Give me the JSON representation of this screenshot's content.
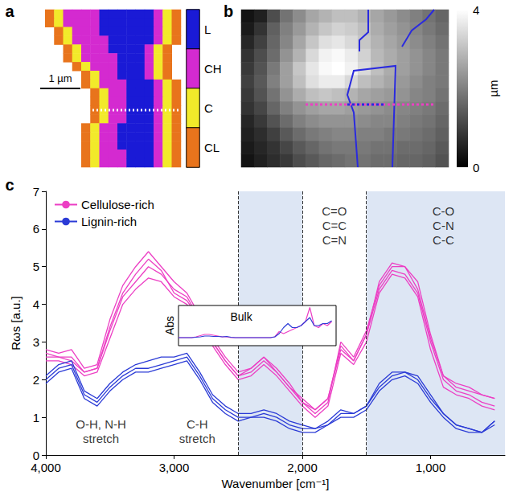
{
  "chart_data": [
    {
      "type": "heatmap",
      "panel_label": "a",
      "tick_labels": false,
      "classes": [
        {
          "name": "L",
          "color": "#1a1ad6"
        },
        {
          "name": "CH",
          "color": "#d42ad0"
        },
        {
          "name": "C",
          "color": "#f2ea2a"
        },
        {
          "name": "CL",
          "color": "#e8741c"
        }
      ],
      "annotations": [
        {
          "text": "1 µm"
        }
      ],
      "cells": [
        [
          null,
          "CL",
          "C",
          "CH",
          "CH",
          "CH",
          "CH",
          "L",
          "L",
          "L",
          "L",
          "L",
          "L",
          "CH",
          "C",
          "CL"
        ],
        [
          null,
          "CL",
          "C",
          "CH",
          "CH",
          "CH",
          "CH",
          "L",
          "L",
          "L",
          "L",
          "L",
          "L",
          "CH",
          "C",
          "CL"
        ],
        [
          null,
          null,
          "CL",
          "C",
          "CH",
          "CH",
          "CH",
          "L",
          "L",
          "L",
          "L",
          "L",
          "L",
          "CH",
          "C",
          "CL"
        ],
        [
          null,
          null,
          "CL",
          "C",
          "CH",
          "CH",
          "CH",
          "CH",
          "L",
          "L",
          "L",
          "L",
          "L",
          "CH",
          "C",
          "CL"
        ],
        [
          null,
          null,
          null,
          "CL",
          "C",
          "CH",
          "CH",
          "CH",
          "L",
          "L",
          "L",
          "L",
          "CH",
          "C",
          "CL",
          null
        ],
        [
          null,
          null,
          null,
          "CL",
          "C",
          "CH",
          "CH",
          "CH",
          "CH",
          "L",
          "L",
          "L",
          "CH",
          "C",
          "CL",
          null
        ],
        [
          null,
          null,
          null,
          null,
          "CL",
          "C",
          "CH",
          "CH",
          "CH",
          "L",
          "L",
          "L",
          "CH",
          "C",
          "CL",
          null
        ],
        [
          null,
          null,
          null,
          null,
          null,
          "CL",
          "C",
          "CH",
          "CH",
          "L",
          "L",
          "L",
          "CH",
          "C",
          "CL",
          null
        ],
        [
          null,
          null,
          null,
          null,
          null,
          "CL",
          "C",
          "CH",
          "CH",
          "CH",
          "L",
          "L",
          "L",
          "CH",
          "C",
          "CL"
        ],
        [
          null,
          null,
          null,
          null,
          null,
          null,
          "CL",
          "C",
          "CH",
          "CH",
          "L",
          "L",
          "L",
          "CH",
          "C",
          "CL"
        ],
        [
          null,
          null,
          null,
          null,
          null,
          null,
          "CL",
          "C",
          "CH",
          "CH",
          "L",
          "L",
          "L",
          "CH",
          "C",
          "CL"
        ],
        [
          null,
          null,
          null,
          null,
          null,
          null,
          "CL",
          "C",
          "CH",
          "CH",
          "L",
          "L",
          "L",
          "CH",
          "C",
          "CL"
        ],
        [
          null,
          null,
          null,
          null,
          null,
          null,
          "CL",
          "C",
          "CH",
          "CH",
          "L",
          "L",
          "L",
          "CH",
          "C",
          "CL"
        ],
        [
          null,
          null,
          null,
          null,
          null,
          "CL",
          "C",
          "CH",
          "CH",
          "L",
          "L",
          "L",
          "L",
          "CH",
          "C",
          "CL"
        ],
        [
          null,
          null,
          null,
          null,
          null,
          "CL",
          "C",
          "CH",
          "CH",
          "L",
          "L",
          "L",
          "L",
          "CH",
          "C",
          "CL"
        ],
        [
          null,
          null,
          null,
          null,
          null,
          "CL",
          "C",
          "CH",
          "CH",
          "L",
          "L",
          "L",
          "L",
          "CH",
          "C",
          "CL"
        ],
        [
          null,
          null,
          null,
          null,
          null,
          "CL",
          "C",
          "CH",
          "CH",
          "CH",
          "L",
          "L",
          "L",
          "CH",
          "C",
          "CL"
        ],
        [
          null,
          null,
          null,
          null,
          null,
          "CL",
          "C",
          "CH",
          "CH",
          "CH",
          "L",
          "L",
          "L",
          "CH",
          "C",
          "CL"
        ]
      ]
    },
    {
      "type": "heatmap",
      "panel_label": "b",
      "tick_labels": false,
      "colorbar": {
        "range": [
          0,
          4
        ],
        "ticks": [
          0,
          4
        ],
        "label": "µm",
        "colors": [
          "#000000",
          "#ffffff"
        ]
      },
      "cells": [
        [
          0.3,
          0.5,
          1.2,
          1.8,
          2.2,
          2.6,
          2.8,
          3.0,
          3.0,
          2.8,
          2.6,
          2.4,
          2.2,
          2.0,
          1.8,
          1.6
        ],
        [
          0.4,
          0.8,
          1.5,
          2.0,
          2.4,
          2.8,
          3.1,
          3.3,
          3.2,
          3.0,
          2.7,
          2.5,
          2.3,
          2.1,
          1.9,
          1.7
        ],
        [
          0.6,
          1.0,
          1.6,
          2.1,
          2.6,
          3.1,
          3.5,
          3.6,
          3.4,
          3.1,
          2.8,
          2.6,
          2.4,
          2.2,
          2.0,
          1.8
        ],
        [
          0.8,
          1.2,
          1.7,
          2.3,
          2.8,
          3.4,
          3.8,
          3.9,
          3.7,
          3.3,
          2.9,
          2.7,
          2.5,
          2.3,
          2.1,
          1.9
        ],
        [
          0.9,
          1.3,
          1.9,
          2.5,
          3.1,
          3.6,
          3.9,
          4.0,
          3.8,
          3.4,
          3.0,
          2.7,
          2.5,
          2.3,
          2.1,
          1.9
        ],
        [
          1.0,
          1.4,
          2.0,
          2.5,
          3.0,
          3.5,
          3.7,
          3.7,
          3.4,
          3.0,
          2.8,
          2.6,
          2.4,
          2.2,
          2.0,
          1.9
        ],
        [
          0.9,
          1.3,
          1.8,
          2.3,
          2.7,
          3.0,
          3.1,
          3.0,
          2.8,
          2.6,
          2.5,
          2.4,
          2.3,
          2.1,
          2.0,
          1.8
        ],
        [
          0.8,
          1.1,
          1.6,
          2.0,
          2.3,
          2.5,
          2.6,
          2.6,
          2.5,
          2.4,
          2.3,
          2.2,
          2.1,
          2.0,
          1.9,
          1.7
        ],
        [
          0.6,
          0.9,
          1.3,
          1.7,
          2.0,
          2.2,
          2.3,
          2.3,
          2.3,
          2.2,
          2.1,
          2.1,
          2.0,
          1.9,
          1.8,
          1.6
        ],
        [
          0.5,
          0.7,
          1.0,
          1.4,
          1.7,
          1.9,
          2.0,
          2.1,
          2.1,
          2.0,
          2.0,
          1.9,
          1.9,
          1.8,
          1.7,
          1.5
        ],
        [
          0.4,
          0.6,
          0.8,
          1.1,
          1.4,
          1.6,
          1.8,
          1.9,
          1.9,
          1.9,
          1.8,
          1.8,
          1.7,
          1.7,
          1.6,
          1.4
        ],
        [
          0.3,
          0.5,
          0.7,
          0.9,
          1.2,
          1.4,
          1.6,
          1.7,
          1.8,
          1.8,
          1.7,
          1.7,
          1.6,
          1.6,
          1.5,
          1.3
        ]
      ]
    },
    {
      "type": "line",
      "panel_label": "c",
      "xlabel": "Wavenumber [cm⁻¹]",
      "ylabel": "Rωs [a.u.]",
      "xlim": [
        4000,
        420
      ],
      "xticks": [
        4000,
        3000,
        2000,
        1000
      ],
      "ylim": [
        0,
        7
      ],
      "yticks": [
        0,
        1,
        2,
        3,
        4,
        5,
        6,
        7
      ],
      "grid": false,
      "legend": "upper left",
      "x": [
        4000,
        3900,
        3800,
        3700,
        3600,
        3500,
        3400,
        3300,
        3200,
        3100,
        3000,
        2900,
        2800,
        2700,
        2600,
        2500,
        2400,
        2300,
        2200,
        2100,
        2000,
        1900,
        1800,
        1700,
        1600,
        1500,
        1400,
        1300,
        1200,
        1100,
        1000,
        900,
        800,
        700,
        600,
        500
      ],
      "series": [
        {
          "name": "Cellulose-rich",
          "color": "#ec3fc4",
          "values": [
            2.6,
            2.6,
            2.5,
            2.2,
            2.3,
            3.3,
            4.2,
            4.6,
            5.0,
            4.8,
            4.4,
            4.2,
            3.6,
            3.0,
            2.5,
            2.1,
            2.2,
            2.5,
            2.2,
            1.8,
            1.5,
            1.2,
            1.5,
            2.8,
            2.5,
            3.2,
            4.4,
            4.9,
            4.8,
            4.3,
            3.0,
            2.0,
            1.7,
            1.6,
            1.4,
            1.3
          ]
        },
        {
          "name": "Cellulose-rich",
          "color": "#ec3fc4",
          "values": [
            2.8,
            2.7,
            2.8,
            2.3,
            2.4,
            3.6,
            4.5,
            5.0,
            5.4,
            5.0,
            4.6,
            4.3,
            3.7,
            3.1,
            2.6,
            2.2,
            2.3,
            2.6,
            2.3,
            1.9,
            1.4,
            1.1,
            1.4,
            3.0,
            2.6,
            3.3,
            4.5,
            5.0,
            5.0,
            4.6,
            3.2,
            2.1,
            1.8,
            1.7,
            1.6,
            1.5
          ]
        },
        {
          "name": "Cellulose-rich",
          "color": "#ec3fc4",
          "values": [
            2.5,
            2.5,
            2.4,
            2.1,
            2.2,
            3.1,
            4.0,
            4.4,
            4.7,
            4.6,
            4.2,
            4.0,
            3.5,
            2.9,
            2.4,
            2.0,
            2.1,
            2.4,
            2.1,
            1.7,
            1.3,
            1.0,
            1.3,
            2.7,
            2.4,
            3.0,
            4.3,
            4.8,
            4.7,
            4.2,
            2.8,
            1.8,
            1.6,
            1.5,
            1.3,
            1.2
          ]
        },
        {
          "name": "Cellulose-rich",
          "color": "#ec3fc4",
          "values": [
            2.7,
            2.6,
            2.6,
            2.2,
            2.3,
            3.4,
            4.3,
            4.8,
            5.2,
            4.9,
            4.3,
            4.1,
            3.6,
            3.0,
            2.5,
            2.1,
            2.3,
            2.6,
            2.2,
            1.8,
            1.4,
            1.2,
            1.5,
            2.9,
            2.5,
            3.2,
            4.6,
            5.1,
            5.0,
            4.4,
            3.1,
            2.1,
            1.9,
            1.8,
            1.6,
            1.5
          ]
        },
        {
          "name": "Lignin-rich",
          "color": "#2b3bd6",
          "values": [
            2.0,
            2.3,
            2.4,
            1.6,
            1.4,
            1.8,
            2.1,
            2.3,
            2.3,
            2.4,
            2.5,
            2.6,
            2.1,
            1.5,
            1.2,
            1.0,
            1.0,
            1.1,
            1.0,
            0.8,
            0.7,
            0.7,
            0.8,
            1.1,
            1.1,
            1.3,
            1.8,
            2.1,
            2.2,
            2.0,
            1.5,
            1.1,
            0.8,
            0.7,
            0.6,
            0.9
          ]
        },
        {
          "name": "Lignin-rich",
          "color": "#2b3bd6",
          "values": [
            2.1,
            2.4,
            2.5,
            1.7,
            1.5,
            1.9,
            2.2,
            2.4,
            2.5,
            2.6,
            2.6,
            2.7,
            2.2,
            1.6,
            1.3,
            1.1,
            1.1,
            1.2,
            1.1,
            0.9,
            0.8,
            0.7,
            0.9,
            1.2,
            1.1,
            1.3,
            1.9,
            2.2,
            2.2,
            2.1,
            1.6,
            1.1,
            0.8,
            0.7,
            0.6,
            0.8
          ]
        },
        {
          "name": "Lignin-rich",
          "color": "#2b3bd6",
          "values": [
            1.9,
            2.2,
            2.3,
            1.5,
            1.3,
            1.7,
            2.0,
            2.2,
            2.2,
            2.3,
            2.4,
            2.5,
            2.0,
            1.4,
            1.1,
            0.9,
            1.0,
            1.0,
            0.9,
            0.7,
            0.6,
            0.6,
            0.8,
            1.0,
            1.0,
            1.2,
            1.7,
            2.0,
            2.1,
            1.9,
            1.4,
            1.0,
            0.7,
            0.6,
            0.6,
            0.9
          ]
        }
      ],
      "bands": [
        {
          "from": 2500,
          "to": 2000,
          "color": "#dde6f4"
        },
        {
          "from": 1500,
          "to": 420,
          "color": "#dde6f4"
        }
      ],
      "dashed_lines": [
        2500,
        2000,
        1500
      ],
      "annotations": [
        {
          "text": "O-H, N-H\nstretch",
          "x": 3570,
          "y": 0.63
        },
        {
          "text": "C-H\nstretch",
          "x": 2820,
          "y": 0.63
        },
        {
          "text": "C=O\nC=C\nC=N",
          "x": 1750,
          "y": 6.1
        },
        {
          "text": "C-O\nC-N\nC-C",
          "x": 900,
          "y": 6.1
        }
      ]
    },
    {
      "type": "line",
      "title": "Bulk",
      "ylabel": "Abs",
      "tick_labels": false,
      "xlim": [
        4000,
        400
      ],
      "ylim": [
        0,
        1
      ],
      "x": [
        4000,
        3900,
        3800,
        3700,
        3600,
        3500,
        3400,
        3300,
        3200,
        3100,
        3000,
        2900,
        2800,
        2700,
        2600,
        2500,
        2400,
        2300,
        2200,
        2100,
        2000,
        1900,
        1800,
        1700,
        1600,
        1500,
        1400,
        1300,
        1200,
        1100,
        1000,
        900,
        800,
        700,
        600,
        500
      ],
      "series": [
        {
          "color": "#ec3fc4",
          "values": [
            0.2,
            0.2,
            0.2,
            0.2,
            0.22,
            0.25,
            0.28,
            0.28,
            0.26,
            0.24,
            0.22,
            0.22,
            0.2,
            0.2,
            0.2,
            0.2,
            0.2,
            0.2,
            0.2,
            0.2,
            0.2,
            0.2,
            0.22,
            0.35,
            0.3,
            0.35,
            0.4,
            0.45,
            0.5,
            0.6,
            0.95,
            0.5,
            0.45,
            0.55,
            0.5,
            0.6
          ]
        },
        {
          "color": "#2b3bd6",
          "values": [
            0.2,
            0.2,
            0.2,
            0.2,
            0.21,
            0.22,
            0.24,
            0.24,
            0.23,
            0.23,
            0.22,
            0.23,
            0.21,
            0.2,
            0.2,
            0.2,
            0.2,
            0.2,
            0.2,
            0.2,
            0.2,
            0.2,
            0.22,
            0.3,
            0.45,
            0.55,
            0.45,
            0.45,
            0.5,
            0.6,
            0.7,
            0.5,
            0.5,
            0.55,
            0.55,
            0.62
          ]
        }
      ]
    }
  ]
}
